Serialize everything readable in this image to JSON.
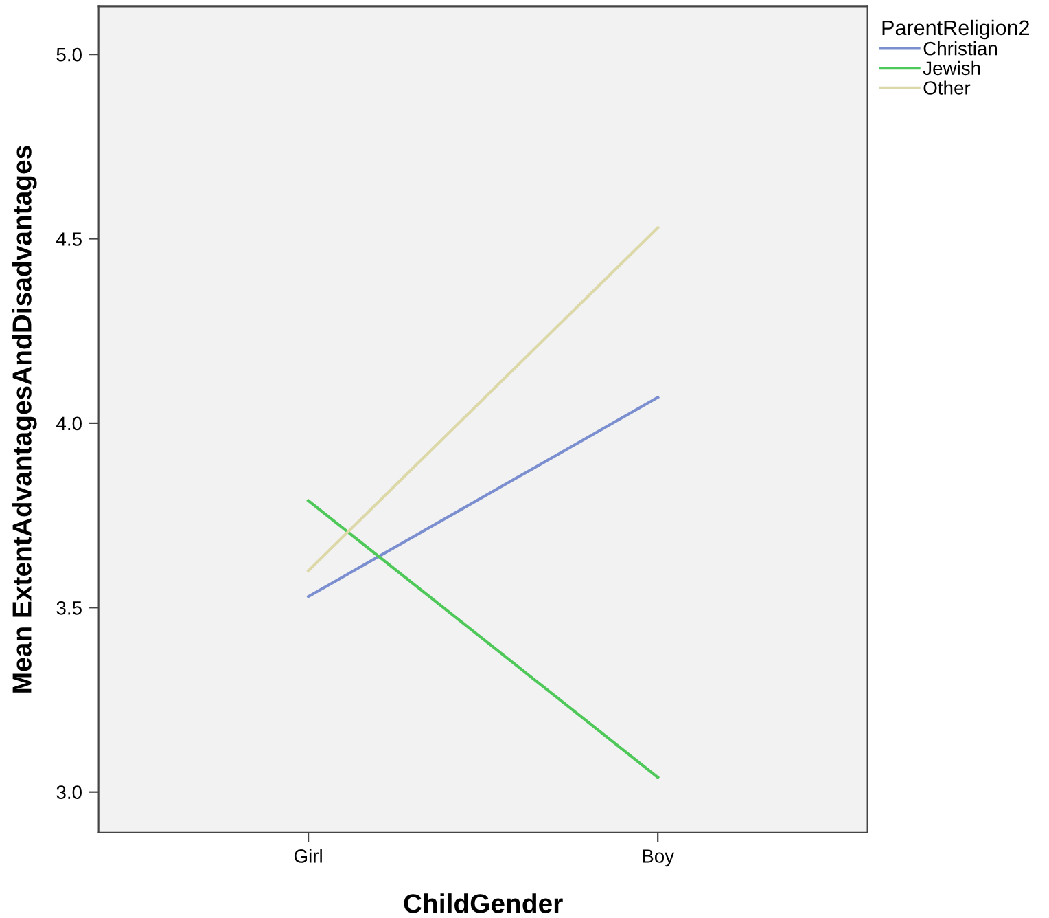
{
  "chart_data": {
    "type": "line",
    "xlabel": "ChildGender",
    "ylabel": "Mean ExtentAdvantagesAndDisadvantages",
    "legend_title": "ParentReligion2",
    "categories": [
      "Girl",
      "Boy"
    ],
    "series": [
      {
        "name": "Christian",
        "color": "#7b8fd0",
        "values": [
          3.53,
          4.07
        ]
      },
      {
        "name": "Jewish",
        "color": "#4fc85a",
        "values": [
          3.79,
          3.04
        ]
      },
      {
        "name": "Other",
        "color": "#dcd8a8",
        "values": [
          3.6,
          4.53
        ]
      }
    ],
    "ylim": [
      2.89,
      5.13
    ],
    "yticks": [
      {
        "value": 3.0,
        "label": "3.0"
      },
      {
        "value": 3.5,
        "label": "3.5"
      },
      {
        "value": 4.0,
        "label": "4.0"
      },
      {
        "value": 4.5,
        "label": "4.5"
      },
      {
        "value": 5.0,
        "label": "5.0"
      }
    ],
    "grid": false,
    "legend": "top right",
    "marker": "none",
    "line_style": "solid"
  }
}
